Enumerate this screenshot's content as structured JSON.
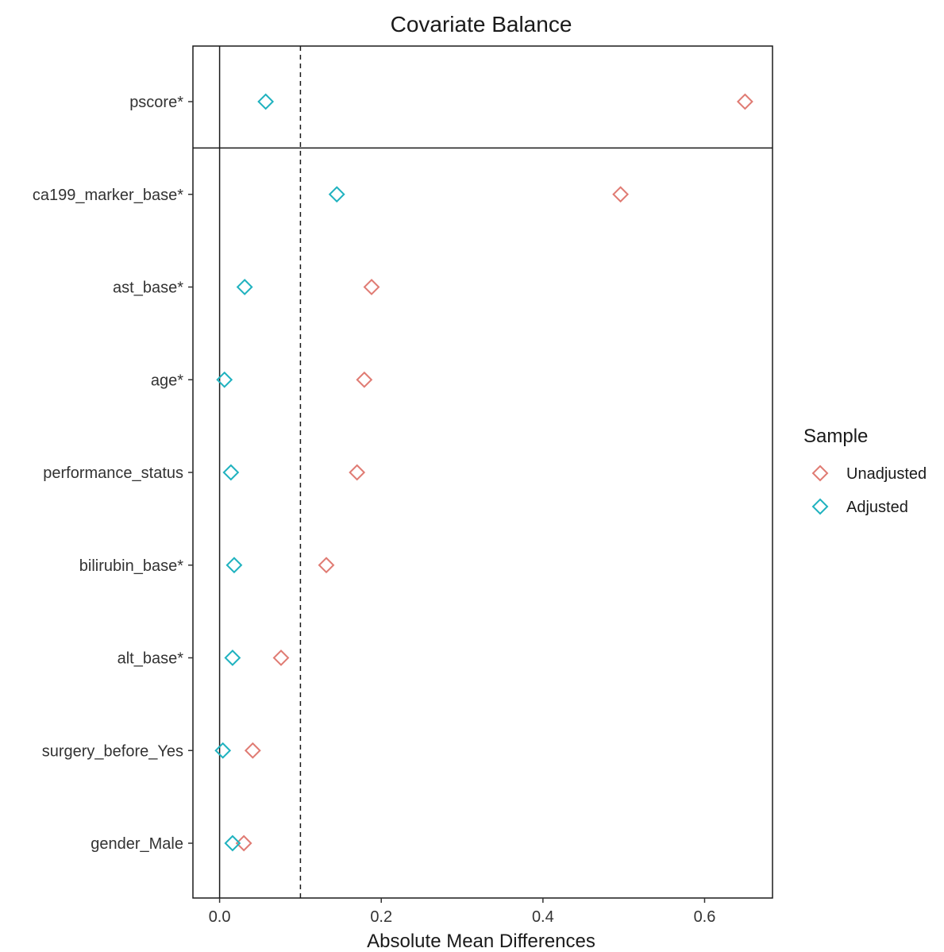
{
  "chart_data": {
    "type": "scatter",
    "title": "Covariate Balance",
    "xlabel": "Absolute Mean Differences",
    "ylabel": "",
    "xlim": [
      -0.033,
      0.684
    ],
    "x_ticks": [
      0.0,
      0.2,
      0.4,
      0.6
    ],
    "x_tick_labels": [
      "0.0",
      "0.2",
      "0.4",
      "0.6"
    ],
    "threshold": 0.1,
    "zero_line": 0,
    "grid": false,
    "legend_position": "right",
    "legend_title": "Sample",
    "categories": [
      "pscore*",
      "ca199_marker_base*",
      "ast_base*",
      "age*",
      "performance_status",
      "bilirubin_base*",
      "alt_base*",
      "surgery_before_Yes",
      "gender_Male"
    ],
    "series": [
      {
        "name": "Unadjusted",
        "color": "#e07b73",
        "marker": "diamond-open",
        "values": [
          0.65,
          0.496,
          0.188,
          0.179,
          0.17,
          0.132,
          0.076,
          0.041,
          0.03
        ]
      },
      {
        "name": "Adjusted",
        "color": "#1fb2bf",
        "marker": "diamond-open",
        "values": [
          0.057,
          0.145,
          0.031,
          0.006,
          0.014,
          0.018,
          0.016,
          0.004,
          0.016
        ]
      }
    ],
    "separator_after_index": 0
  }
}
